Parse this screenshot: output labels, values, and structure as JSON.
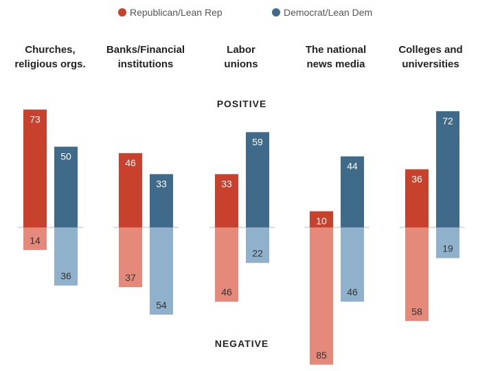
{
  "chart_data": {
    "type": "bar",
    "legend": [
      {
        "name": "Republican/Lean Rep",
        "color": "#c7412c"
      },
      {
        "name": "Democrat/Lean Dem",
        "color": "#3f6a8a"
      }
    ],
    "categories": [
      [
        "Churches,",
        "religious orgs."
      ],
      [
        "Banks/Financial",
        "institutions"
      ],
      [
        "Labor",
        "unions"
      ],
      [
        "The national",
        "news media"
      ],
      [
        "Colleges and",
        "universities"
      ]
    ],
    "positive_label": "POSITIVE",
    "negative_label": "NEGATIVE",
    "series": [
      {
        "name": "Republican/Lean Rep",
        "positive": [
          73,
          46,
          33,
          10,
          36
        ],
        "negative": [
          14,
          37,
          46,
          85,
          58
        ]
      },
      {
        "name": "Democrat/Lean Dem",
        "positive": [
          50,
          33,
          59,
          44,
          72
        ],
        "negative": [
          36,
          54,
          22,
          46,
          19
        ]
      }
    ],
    "colors": {
      "rep_positive": "#c7412c",
      "rep_negative": "#e5897a",
      "dem_positive": "#3f6a8a",
      "dem_negative": "#8fb1cb",
      "axis": "#bbbbbb",
      "text_dark": "#ffffff",
      "text_light": "#333333"
    }
  }
}
